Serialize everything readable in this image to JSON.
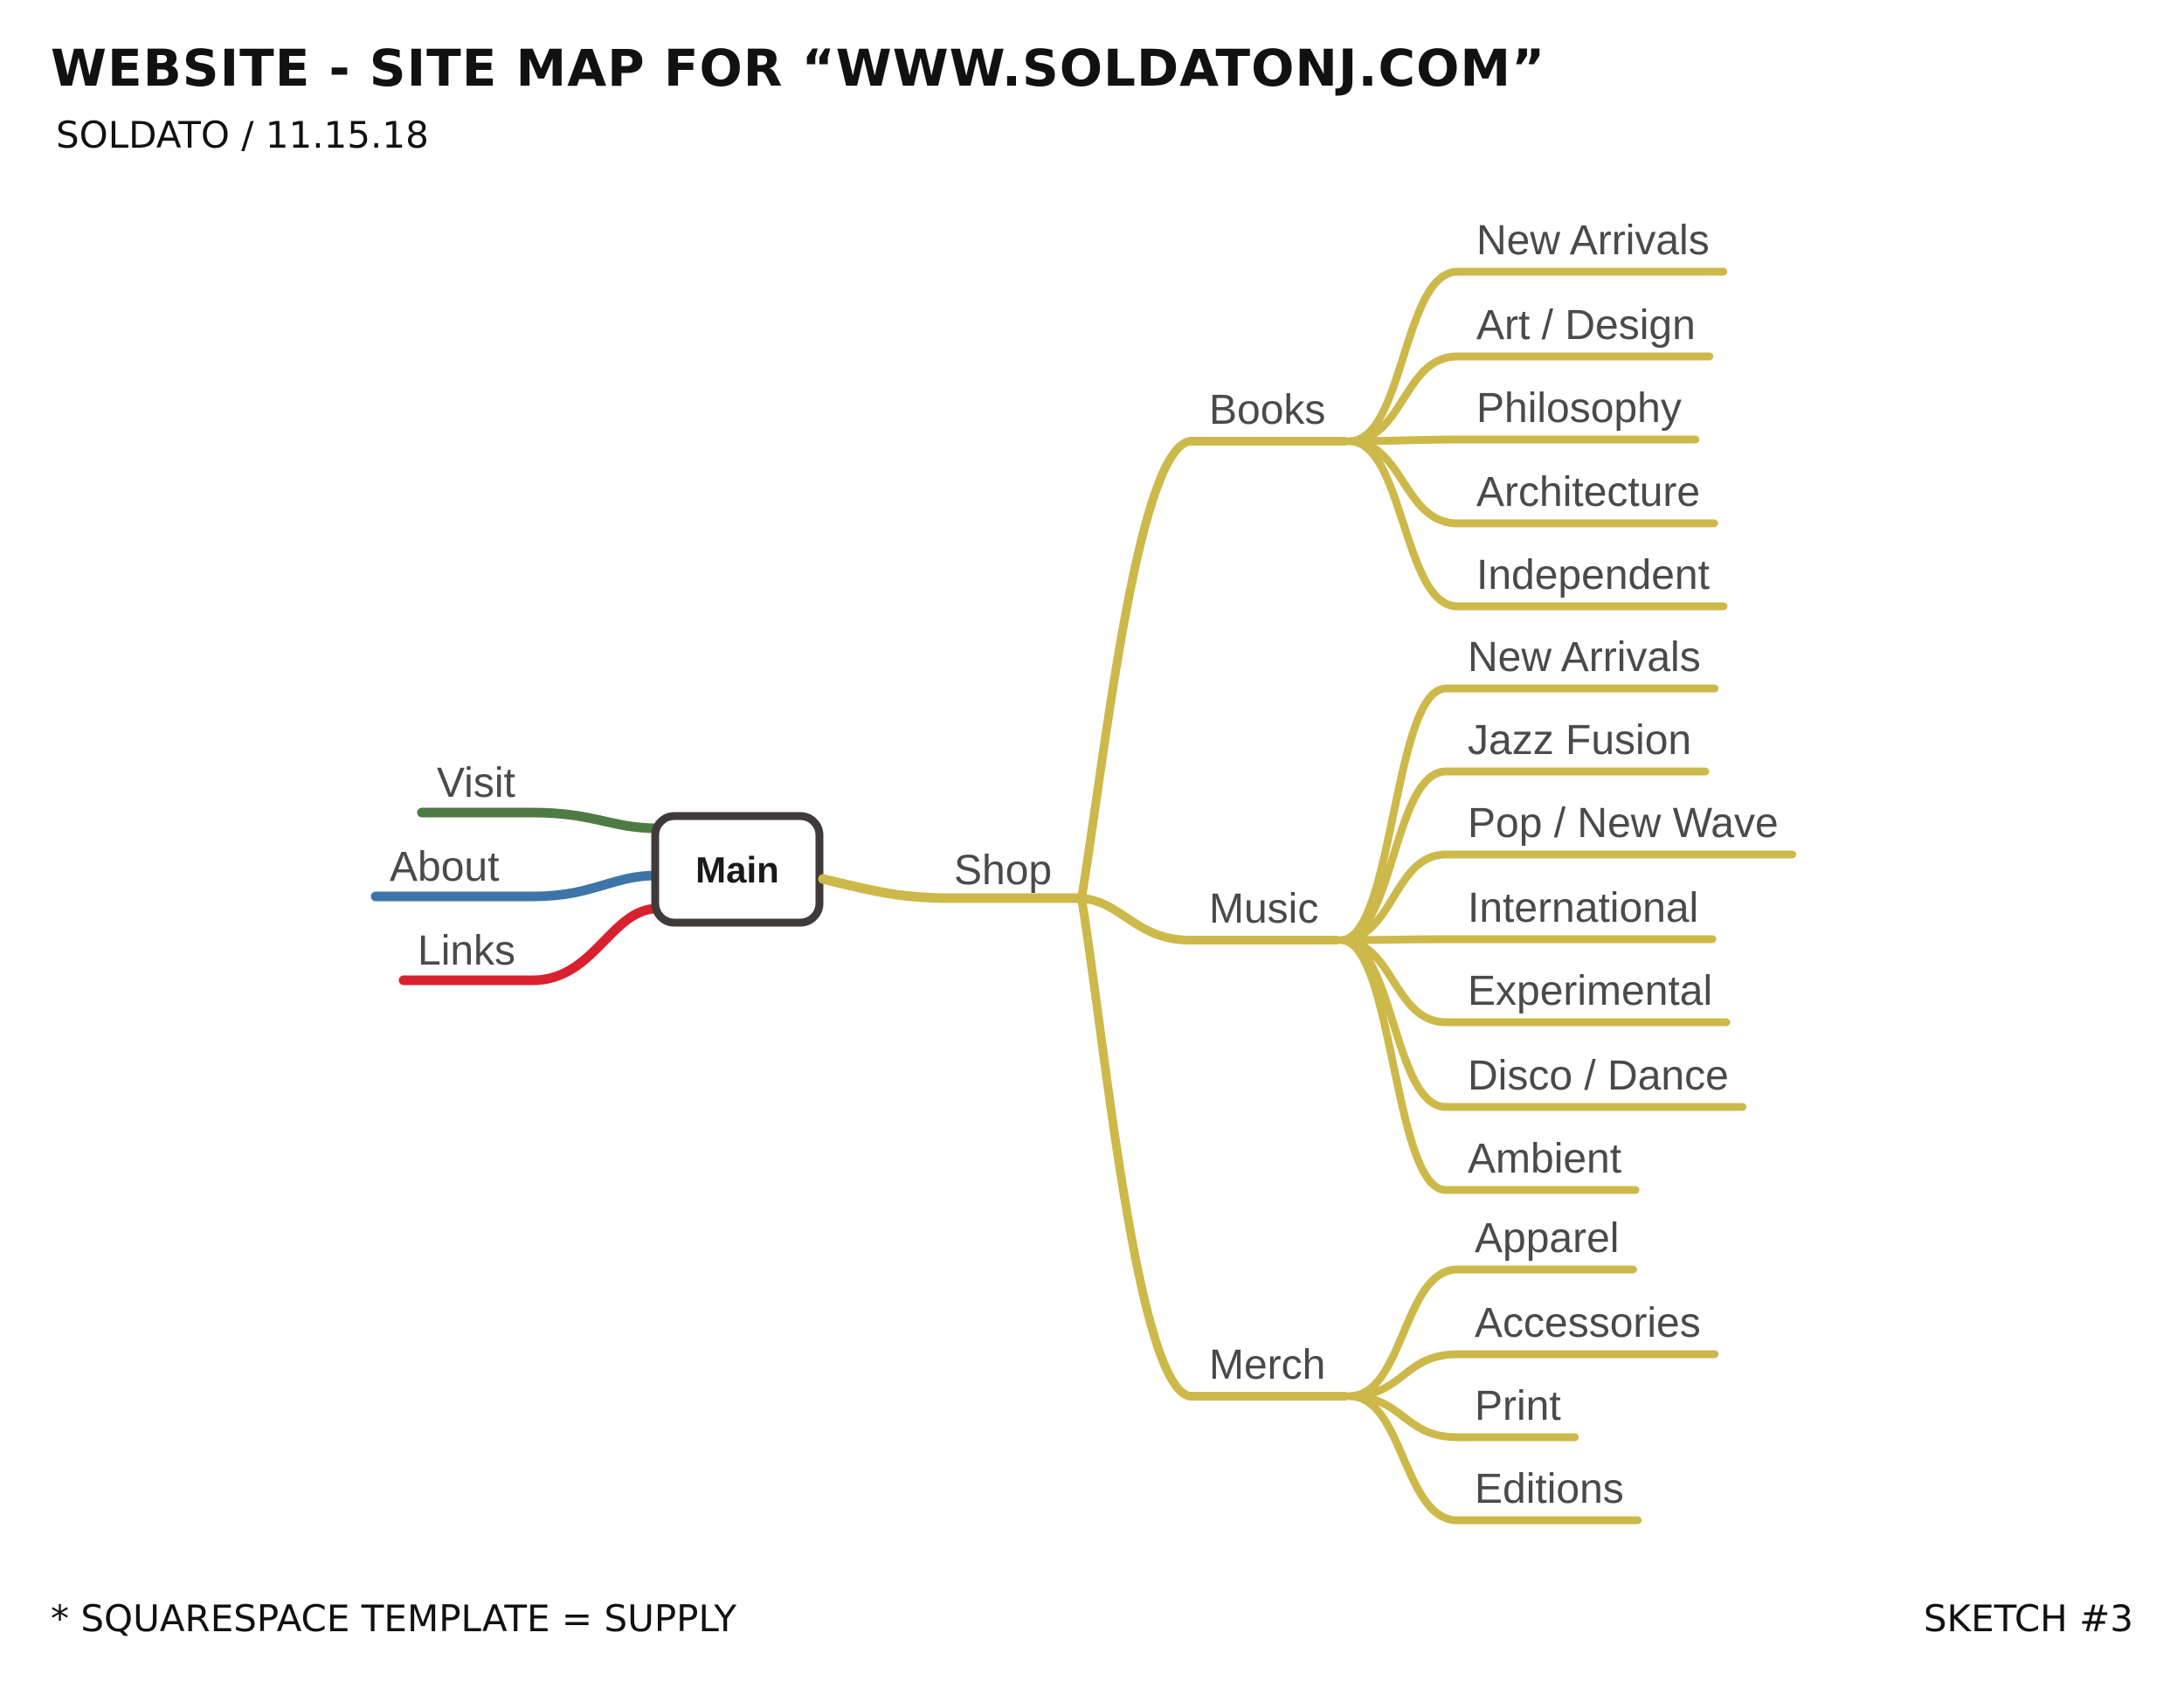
{
  "title": "WEBSITE - SITE MAP FOR “WWW.SOLDATONJ.COM”",
  "subtitle": "SOLDATO / 11.15.18",
  "footer": {
    "left": "* SQUARESPACE TEMPLATE = SUPPLY",
    "right": "SKETCH #3"
  },
  "colors": {
    "shop_branch": "#CDB94A",
    "visit": "#4E7B43",
    "about": "#3E75A8",
    "links": "#D9202E",
    "main_border": "#403A3A",
    "label_text": "#4A4A4A"
  },
  "mindmap": {
    "root": {
      "label": "Main"
    },
    "left": [
      {
        "label": "Visit",
        "color": "visit"
      },
      {
        "label": "About",
        "color": "about"
      },
      {
        "label": "Links",
        "color": "links"
      }
    ],
    "shop": {
      "label": "Shop",
      "categories": [
        {
          "label": "Books",
          "children": [
            "New Arrivals",
            "Art / Design",
            "Philosophy",
            "Architecture",
            "Independent"
          ]
        },
        {
          "label": "Music",
          "children": [
            "New Arrivals",
            "Jazz Fusion",
            "Pop / New Wave",
            "International",
            "Experimental",
            "Disco / Dance",
            "Ambient"
          ]
        },
        {
          "label": "Merch",
          "children": [
            "Apparel",
            "Accessories",
            "Print",
            "Editions"
          ]
        }
      ]
    }
  }
}
